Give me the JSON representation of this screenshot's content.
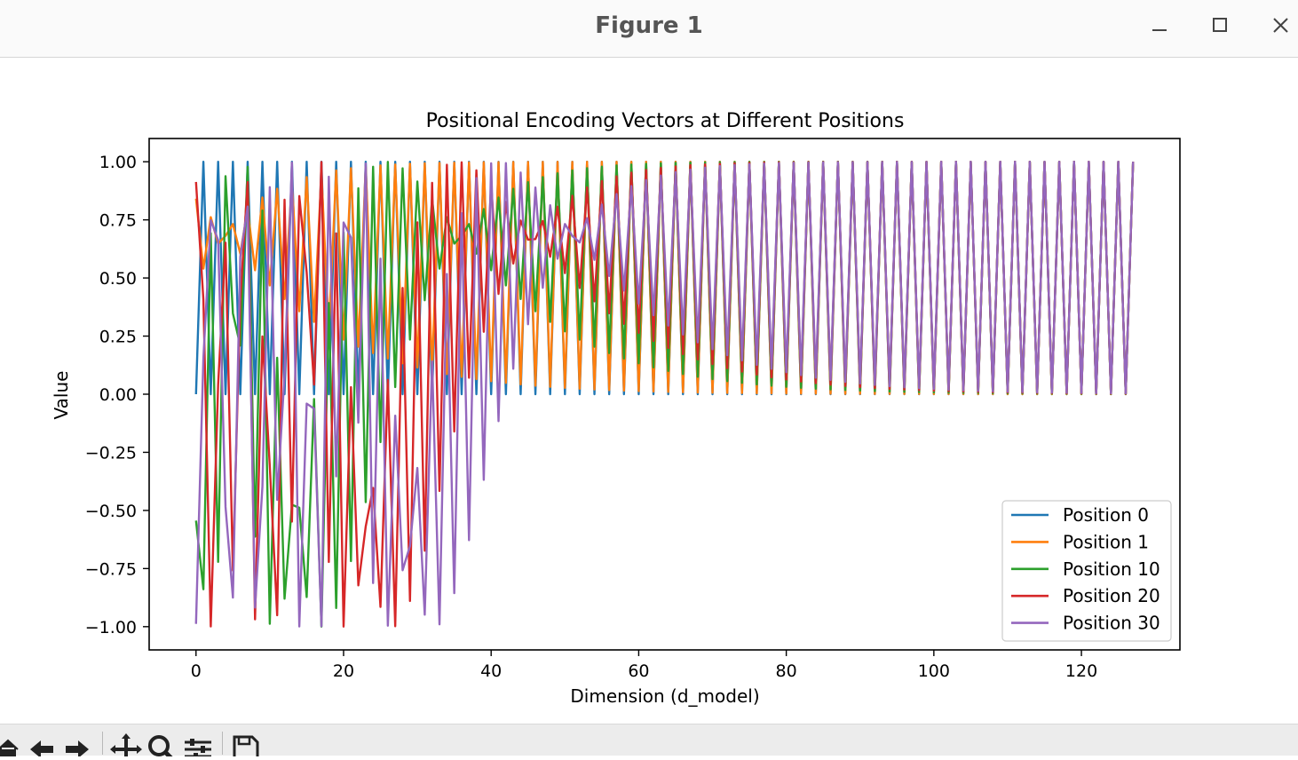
{
  "window": {
    "title": "Figure 1",
    "minimize_icon": "minimize-icon",
    "maximize_icon": "maximize-icon",
    "close_icon": "close-icon"
  },
  "toolbar": {
    "icons": [
      "home-icon",
      "back-arrow-icon",
      "forward-arrow-icon",
      "pan-icon",
      "zoom-icon",
      "configure-subplots-icon",
      "save-icon"
    ]
  },
  "chart_data": {
    "type": "line",
    "title": "Positional Encoding Vectors at Different Positions",
    "xlabel": "Dimension (d_model)",
    "ylabel": "Value",
    "xlim": [
      -6.35,
      133.35
    ],
    "ylim": [
      -1.1,
      1.1
    ],
    "xticks": [
      0,
      20,
      40,
      60,
      80,
      100,
      120
    ],
    "yticks": [
      -1.0,
      -0.75,
      -0.5,
      -0.25,
      0.0,
      0.25,
      0.5,
      0.75,
      1.0
    ],
    "xtick_labels": [
      "0",
      "20",
      "40",
      "60",
      "80",
      "100",
      "120"
    ],
    "ytick_labels": [
      "−1.00",
      "−0.75",
      "−0.50",
      "−0.25",
      "0.00",
      "0.25",
      "0.50",
      "0.75",
      "1.00"
    ],
    "grid": false,
    "legend_position": "lower-right",
    "d_model": 128,
    "positions": [
      0,
      1,
      10,
      20,
      30
    ],
    "series": [
      {
        "name": "Position 0",
        "position": 0,
        "color": "#1f77b4"
      },
      {
        "name": "Position 1",
        "position": 1,
        "color": "#ff7f0e"
      },
      {
        "name": "Position 10",
        "position": 10,
        "color": "#2ca02c"
      },
      {
        "name": "Position 20",
        "position": 20,
        "color": "#d62728"
      },
      {
        "name": "Position 30",
        "position": 30,
        "color": "#9467bd"
      }
    ],
    "x": "0..127",
    "encoding": "even index i: sin(pos / 10000^(i/128)); odd index i: cos(pos / 10000^((i-1)/128))"
  }
}
